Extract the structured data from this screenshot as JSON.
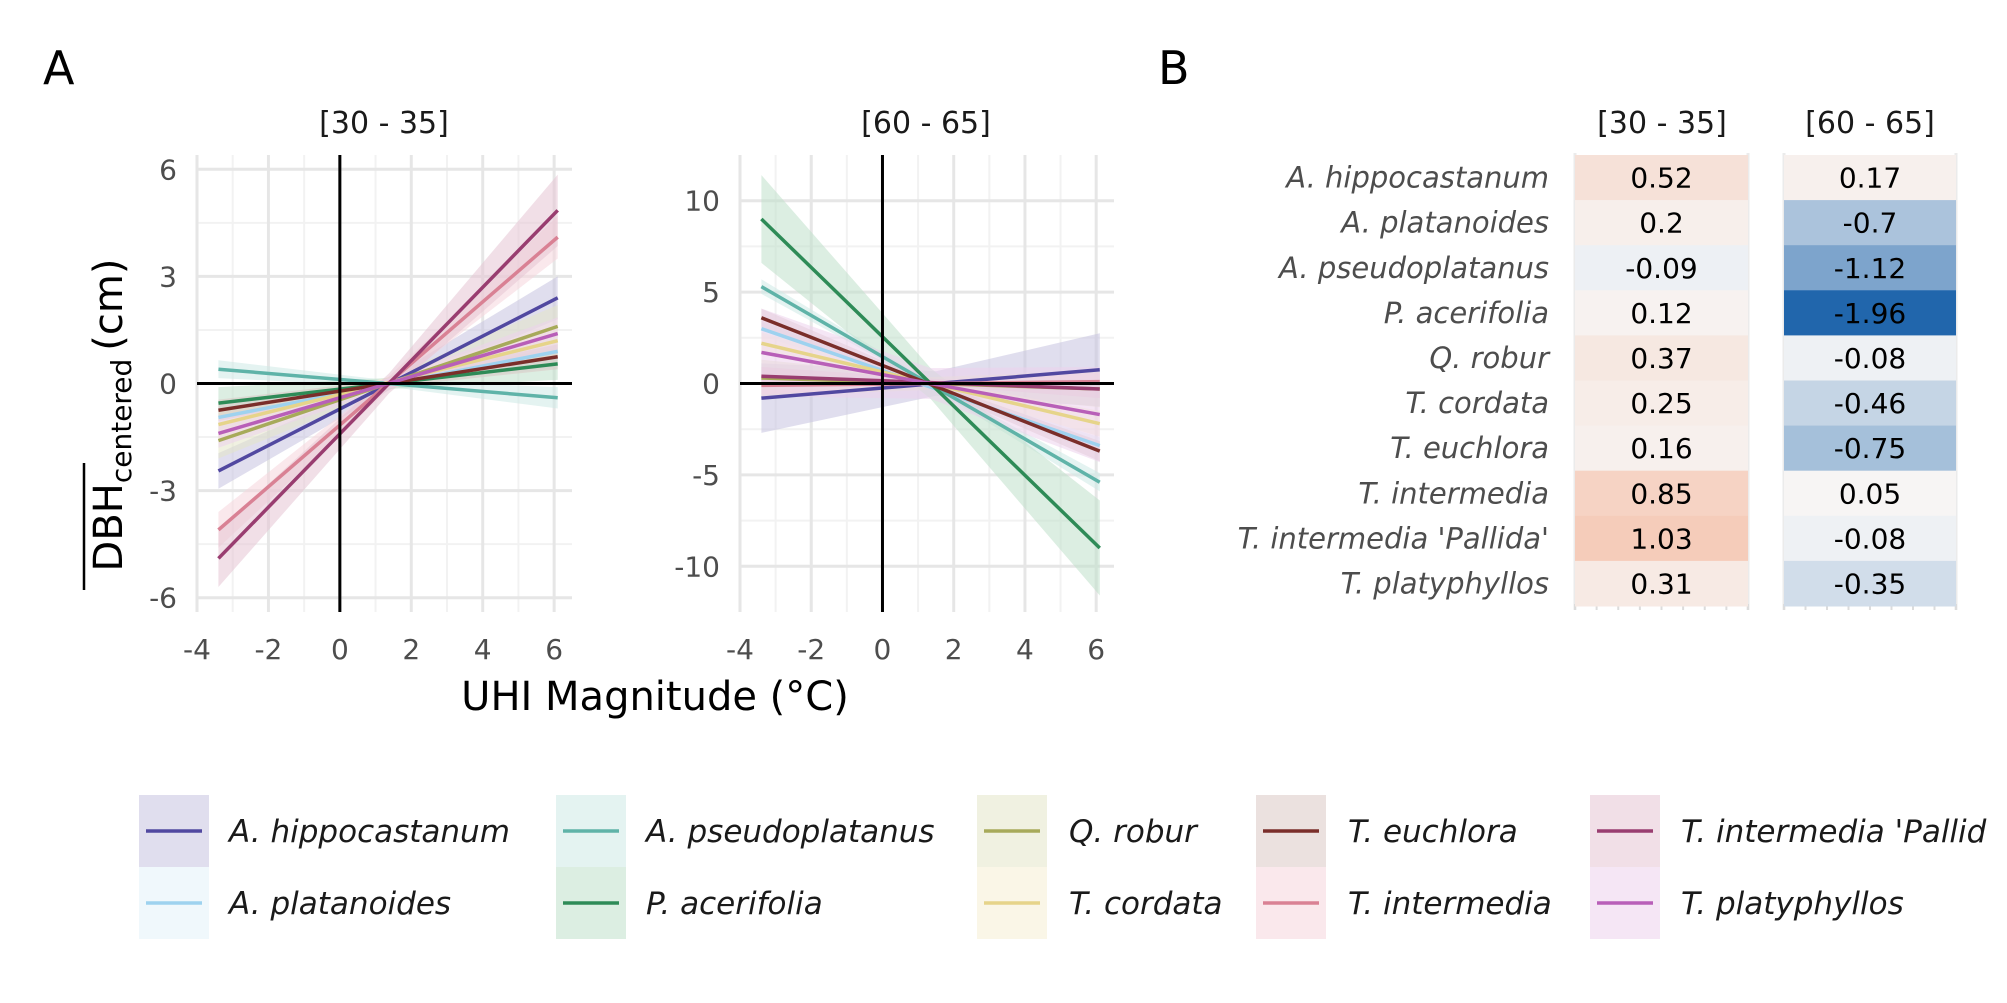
{
  "panels": {
    "a": "A",
    "b": "B"
  },
  "chart_data": [
    {
      "type": "line",
      "panel": "A",
      "facets": [
        "[30 - 35]",
        "[60 - 65]"
      ],
      "xlabel": "UHI Magnitude (°C)",
      "ylabel_main": "DBH",
      "ylabel_sub": "centered",
      "ylabel_unit": "(cm)",
      "x_ticks": [
        "-4",
        "-2",
        "0",
        "2",
        "4",
        "6"
      ],
      "xlim": [
        -4,
        6.5
      ],
      "facet_ylims": [
        [
          -6.4,
          6.4
        ],
        [
          -12.5,
          12.5
        ]
      ],
      "facet_y_ticks": [
        [
          "6",
          "3",
          "0",
          "-3",
          "-6"
        ],
        [
          "10",
          "5",
          "0",
          "-5",
          "-10"
        ]
      ],
      "x_range": [
        -3.4,
        6.1
      ],
      "grid": true,
      "reference_lines": {
        "x": 0,
        "y": 0
      },
      "series": [
        {
          "name": "A. hippocastanum",
          "color": "#5148a0",
          "fills": [
            "#c7c2e0",
            "#c7c2e0"
          ],
          "y": [
            [
              -2.45,
              2.4
            ],
            [
              -0.8,
              0.75
            ]
          ],
          "se": [
            [
              0.5,
              0.6
            ],
            [
              1.9,
              2.0
            ]
          ]
        },
        {
          "name": "A. platanoides",
          "color": "#9ed2ef",
          "fills": [
            "#e3f2fa",
            "#e3f2fa"
          ],
          "y": [
            [
              -0.95,
              0.9
            ],
            [
              3.0,
              -3.4
            ]
          ],
          "se": [
            [
              0.35,
              0.45
            ],
            [
              0.4,
              0.45
            ]
          ]
        },
        {
          "name": "A. pseudoplatanus",
          "color": "#5fb3a8",
          "fills": [
            "#cde9e5",
            "#cde9e5"
          ],
          "y": [
            [
              0.4,
              -0.4
            ],
            [
              5.3,
              -5.4
            ]
          ],
          "se": [
            [
              0.25,
              0.3
            ],
            [
              0.4,
              0.5
            ]
          ]
        },
        {
          "name": "P. acerifolia",
          "color": "#2e8b57",
          "fills": [
            "#c0e0cb",
            "#c0e0cb"
          ],
          "y": [
            [
              -0.55,
              0.55
            ],
            [
              9.0,
              -9.0
            ]
          ],
          "se": [
            [
              0.45,
              0.45
            ],
            [
              2.4,
              2.6
            ]
          ]
        },
        {
          "name": "Q. robur",
          "color": "#a7aa5a",
          "fills": [
            "#e3e5c9",
            "#e3e5c9"
          ],
          "y": [
            [
              -1.6,
              1.6
            ],
            [
              0.3,
              -0.3
            ]
          ],
          "se": [
            [
              0.5,
              0.6
            ],
            [
              1.0,
              1.0
            ]
          ]
        },
        {
          "name": "T. cordata",
          "color": "#e6d48a",
          "fills": [
            "#f5efd3",
            "#f5efd3"
          ],
          "y": [
            [
              -1.15,
              1.2
            ],
            [
              2.2,
              -2.2
            ]
          ],
          "se": [
            [
              0.4,
              0.45
            ],
            [
              0.6,
              0.7
            ]
          ]
        },
        {
          "name": "T. euchlora",
          "color": "#7a2e2a",
          "fills": [
            "#dac8c5",
            "#dac8c5"
          ],
          "y": [
            [
              -0.75,
              0.75
            ],
            [
              3.6,
              -3.7
            ]
          ],
          "se": [
            [
              0.3,
              0.35
            ],
            [
              0.5,
              0.55
            ]
          ]
        },
        {
          "name": "T. intermedia",
          "color": "#d98194",
          "fills": [
            "#f5d6dd",
            "#f5d6dd"
          ],
          "y": [
            [
              -4.1,
              4.1
            ],
            [
              -0.1,
              0.1
            ]
          ],
          "se": [
            [
              0.5,
              0.6
            ],
            [
              0.5,
              0.5
            ]
          ]
        },
        {
          "name": "T. intermedia 'Pallida'",
          "color": "#993d70",
          "fills": [
            "#e5c4d4",
            "#e5c4d4"
          ],
          "y": [
            [
              -4.9,
              4.85
            ],
            [
              0.4,
              -0.3
            ]
          ],
          "se": [
            [
              0.8,
              1.0
            ],
            [
              0.5,
              0.5
            ]
          ]
        },
        {
          "name": "T. platyphyllos",
          "color": "#b85fb8",
          "fills": [
            "#ecd2ec",
            "#ecd2ec"
          ],
          "y": [
            [
              -1.4,
              1.4
            ],
            [
              1.7,
              -1.7
            ]
          ],
          "se": [
            [
              0.4,
              0.45
            ],
            [
              2.4,
              2.6
            ]
          ]
        }
      ]
    },
    {
      "type": "heatmap",
      "panel": "B",
      "columns": [
        "[30 - 35]",
        "[60 - 65]"
      ],
      "rows": [
        "A. hippocastanum",
        "A. platanoides",
        "A. pseudoplatanus",
        "P. acerifolia",
        "Q. robur",
        "T. cordata",
        "T. euchlora",
        "T. intermedia",
        "T. intermedia 'Pallida'",
        "T. platyphyllos"
      ],
      "values": [
        [
          0.52,
          0.17
        ],
        [
          0.2,
          -0.7
        ],
        [
          -0.09,
          -1.12
        ],
        [
          0.12,
          -1.96
        ],
        [
          0.37,
          -0.08
        ],
        [
          0.25,
          -0.46
        ],
        [
          0.16,
          -0.75
        ],
        [
          0.85,
          0.05
        ],
        [
          1.03,
          -0.08
        ],
        [
          0.31,
          -0.35
        ]
      ],
      "labels": [
        [
          "0.52",
          "0.17"
        ],
        [
          "0.2",
          "-0.7"
        ],
        [
          "-0.09",
          "-1.12"
        ],
        [
          "0.12",
          "-1.96"
        ],
        [
          "0.37",
          "-0.08"
        ],
        [
          "0.25",
          "-0.46"
        ],
        [
          "0.16",
          "-0.75"
        ],
        [
          "0.85",
          "0.05"
        ],
        [
          "1.03",
          "-0.08"
        ],
        [
          "0.31",
          "-0.35"
        ]
      ],
      "colors": {
        "positive": "#f4a582",
        "neutral": "#f7f7f7",
        "negative": "#2166ac"
      },
      "color_limits": [
        -1.96,
        1.96
      ]
    }
  ],
  "legend": {
    "placement": "bottom",
    "label_clip": {
      "T. intermedia 'Pallida'": "T. intermedia 'Pallid"
    }
  }
}
